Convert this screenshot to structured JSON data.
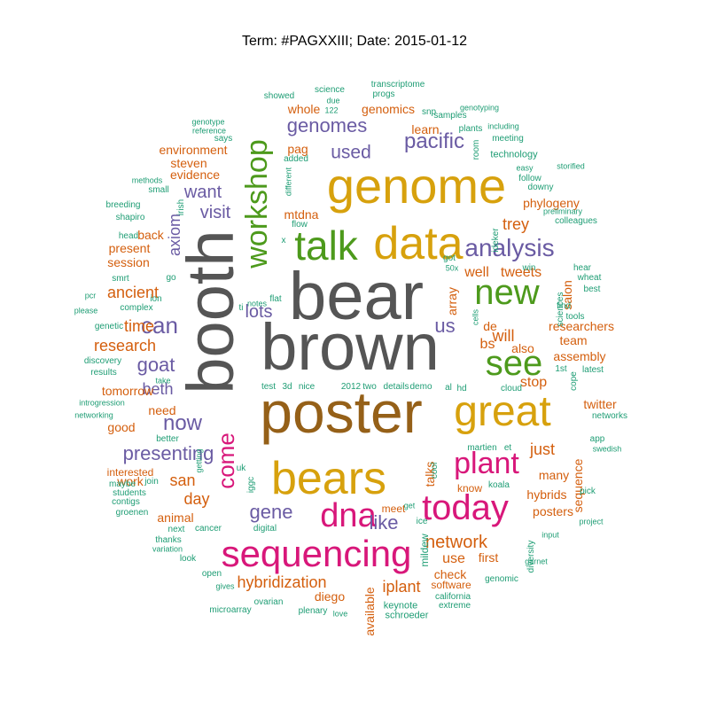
{
  "title": "Term: #PAGXXIII; Date: 2015-01-12",
  "colors": {
    "gray": "#555555",
    "brown": "#956018",
    "gold": "#d7a10d",
    "green": "#4d9a1c",
    "pink": "#d8177a",
    "purple": "#6a5ba3",
    "orange": "#d45f0e",
    "teal": "#1e9d74"
  },
  "words": [
    {
      "text": "brown",
      "color": "gray"
    },
    {
      "text": "bear",
      "color": "gray"
    },
    {
      "text": "booth",
      "color": "gray"
    },
    {
      "text": "poster",
      "color": "brown"
    },
    {
      "text": "genome",
      "color": "gold"
    },
    {
      "text": "data",
      "color": "gold"
    },
    {
      "text": "great",
      "color": "gold"
    },
    {
      "text": "bears",
      "color": "gold"
    },
    {
      "text": "talk",
      "color": "green"
    },
    {
      "text": "new",
      "color": "green"
    },
    {
      "text": "see",
      "color": "green"
    },
    {
      "text": "workshop",
      "color": "green"
    },
    {
      "text": "sequencing",
      "color": "pink"
    },
    {
      "text": "today",
      "color": "pink"
    },
    {
      "text": "dna",
      "color": "pink"
    },
    {
      "text": "plant",
      "color": "pink"
    },
    {
      "text": "come",
      "color": "pink"
    },
    {
      "text": "analysis",
      "color": "purple"
    },
    {
      "text": "pacific",
      "color": "purple"
    },
    {
      "text": "genomes",
      "color": "purple"
    },
    {
      "text": "used",
      "color": "purple"
    },
    {
      "text": "us",
      "color": "purple"
    },
    {
      "text": "can",
      "color": "purple"
    },
    {
      "text": "goat",
      "color": "purple"
    },
    {
      "text": "now",
      "color": "purple"
    },
    {
      "text": "presenting",
      "color": "purple"
    },
    {
      "text": "gene",
      "color": "purple"
    },
    {
      "text": "like",
      "color": "purple"
    },
    {
      "text": "lots",
      "color": "purple"
    },
    {
      "text": "want",
      "color": "purple"
    },
    {
      "text": "visit",
      "color": "purple"
    },
    {
      "text": "beth",
      "color": "purple"
    },
    {
      "text": "axiom",
      "color": "purple"
    },
    {
      "text": "ancient",
      "color": "orange"
    },
    {
      "text": "time",
      "color": "orange"
    },
    {
      "text": "research",
      "color": "orange"
    },
    {
      "text": "network",
      "color": "orange"
    },
    {
      "text": "hybridization",
      "color": "orange"
    },
    {
      "text": "iplant",
      "color": "orange"
    },
    {
      "text": "trey",
      "color": "orange"
    },
    {
      "text": "tweets",
      "color": "orange"
    },
    {
      "text": "well",
      "color": "orange"
    },
    {
      "text": "will",
      "color": "orange"
    },
    {
      "text": "stop",
      "color": "orange"
    },
    {
      "text": "bs",
      "color": "orange"
    },
    {
      "text": "san",
      "color": "orange"
    },
    {
      "text": "day",
      "color": "orange"
    },
    {
      "text": "just",
      "color": "orange"
    },
    {
      "text": "learn",
      "color": "orange"
    },
    {
      "text": "genomics",
      "color": "orange"
    },
    {
      "text": "whole",
      "color": "orange"
    },
    {
      "text": "evidence",
      "color": "orange"
    },
    {
      "text": "environment",
      "color": "orange"
    },
    {
      "text": "steven",
      "color": "orange"
    },
    {
      "text": "phylogeny",
      "color": "orange"
    },
    {
      "text": "salon",
      "color": "orange"
    },
    {
      "text": "assembly",
      "color": "orange"
    },
    {
      "text": "also",
      "color": "orange"
    },
    {
      "text": "use",
      "color": "orange"
    },
    {
      "text": "check",
      "color": "orange"
    },
    {
      "text": "first",
      "color": "orange"
    },
    {
      "text": "hybrids",
      "color": "orange"
    },
    {
      "text": "posters",
      "color": "orange"
    },
    {
      "text": "sequence",
      "color": "orange"
    },
    {
      "text": "many",
      "color": "orange"
    },
    {
      "text": "animal",
      "color": "orange"
    },
    {
      "text": "work",
      "color": "orange"
    },
    {
      "text": "good",
      "color": "orange"
    },
    {
      "text": "need",
      "color": "orange"
    },
    {
      "text": "tomorrow",
      "color": "orange"
    },
    {
      "text": "session",
      "color": "orange"
    },
    {
      "text": "present",
      "color": "orange"
    },
    {
      "text": "back",
      "color": "orange"
    },
    {
      "text": "pag",
      "color": "orange"
    },
    {
      "text": "mtdna",
      "color": "orange"
    },
    {
      "text": "de",
      "color": "orange"
    },
    {
      "text": "array",
      "color": "orange"
    },
    {
      "text": "interested",
      "color": "orange"
    },
    {
      "text": "diego",
      "color": "orange"
    },
    {
      "text": "software",
      "color": "orange"
    },
    {
      "text": "available",
      "color": "orange"
    },
    {
      "text": "twitter",
      "color": "orange"
    },
    {
      "text": "researchers",
      "color": "orange"
    },
    {
      "text": "team",
      "color": "orange"
    },
    {
      "text": "talks",
      "color": "orange"
    },
    {
      "text": "know",
      "color": "orange"
    },
    {
      "text": "meet",
      "color": "orange"
    },
    {
      "text": "mildew",
      "color": "teal"
    },
    {
      "text": "transcriptome",
      "color": "teal"
    },
    {
      "text": "progs",
      "color": "teal"
    },
    {
      "text": "science",
      "color": "teal"
    },
    {
      "text": "showed",
      "color": "teal"
    },
    {
      "text": "due",
      "color": "teal"
    },
    {
      "text": "122",
      "color": "teal"
    },
    {
      "text": "snp",
      "color": "teal"
    },
    {
      "text": "samples",
      "color": "teal"
    },
    {
      "text": "genotyping",
      "color": "teal"
    },
    {
      "text": "including",
      "color": "teal"
    },
    {
      "text": "plants",
      "color": "teal"
    },
    {
      "text": "meeting",
      "color": "teal"
    },
    {
      "text": "technology",
      "color": "teal"
    },
    {
      "text": "room",
      "color": "teal"
    },
    {
      "text": "easy",
      "color": "teal"
    },
    {
      "text": "follow",
      "color": "teal"
    },
    {
      "text": "downy",
      "color": "teal"
    },
    {
      "text": "genotype",
      "color": "teal"
    },
    {
      "text": "reference",
      "color": "teal"
    },
    {
      "text": "says",
      "color": "teal"
    },
    {
      "text": "added",
      "color": "teal"
    },
    {
      "text": "different",
      "color": "teal"
    },
    {
      "text": "methods",
      "color": "teal"
    },
    {
      "text": "small",
      "color": "teal"
    },
    {
      "text": "breeding",
      "color": "teal"
    },
    {
      "text": "irish",
      "color": "teal"
    },
    {
      "text": "shapiro",
      "color": "teal"
    },
    {
      "text": "head",
      "color": "teal"
    },
    {
      "text": "flow",
      "color": "teal"
    },
    {
      "text": "x",
      "color": "teal"
    },
    {
      "text": "preliminary",
      "color": "teal"
    },
    {
      "text": "colleagues",
      "color": "teal"
    },
    {
      "text": "storified",
      "color": "teal"
    },
    {
      "text": "ideker",
      "color": "teal"
    },
    {
      "text": "got",
      "color": "teal"
    },
    {
      "text": "50x",
      "color": "teal"
    },
    {
      "text": "win",
      "color": "teal"
    },
    {
      "text": "hear",
      "color": "teal"
    },
    {
      "text": "wheat",
      "color": "teal"
    },
    {
      "text": "best",
      "color": "teal"
    },
    {
      "text": "smrt",
      "color": "teal"
    },
    {
      "text": "go",
      "color": "teal"
    },
    {
      "text": "pcr",
      "color": "teal"
    },
    {
      "text": "ion",
      "color": "teal"
    },
    {
      "text": "please",
      "color": "teal"
    },
    {
      "text": "complex",
      "color": "teal"
    },
    {
      "text": "flat",
      "color": "teal"
    },
    {
      "text": "notes",
      "color": "teal"
    },
    {
      "text": "ti",
      "color": "teal"
    },
    {
      "text": "find",
      "color": "teal"
    },
    {
      "text": "tools",
      "color": "teal"
    },
    {
      "text": "sciences",
      "color": "teal"
    },
    {
      "text": "genetic",
      "color": "teal"
    },
    {
      "text": "cells",
      "color": "teal"
    },
    {
      "text": "discovery",
      "color": "teal"
    },
    {
      "text": "results",
      "color": "teal"
    },
    {
      "text": "take",
      "color": "teal"
    },
    {
      "text": "introgression",
      "color": "teal"
    },
    {
      "text": "networking",
      "color": "teal"
    },
    {
      "text": "latest",
      "color": "teal"
    },
    {
      "text": "1st",
      "color": "teal"
    },
    {
      "text": "cope",
      "color": "teal"
    },
    {
      "text": "test",
      "color": "teal"
    },
    {
      "text": "3d",
      "color": "teal"
    },
    {
      "text": "nice",
      "color": "teal"
    },
    {
      "text": "2012",
      "color": "teal"
    },
    {
      "text": "two",
      "color": "teal"
    },
    {
      "text": "details",
      "color": "teal"
    },
    {
      "text": "demo",
      "color": "teal"
    },
    {
      "text": "al",
      "color": "teal"
    },
    {
      "text": "hd",
      "color": "teal"
    },
    {
      "text": "cloud",
      "color": "teal"
    },
    {
      "text": "networks",
      "color": "teal"
    },
    {
      "text": "app",
      "color": "teal"
    },
    {
      "text": "swedish",
      "color": "teal"
    },
    {
      "text": "better",
      "color": "teal"
    },
    {
      "text": "getting",
      "color": "teal"
    },
    {
      "text": "uk",
      "color": "teal"
    },
    {
      "text": "maybe",
      "color": "teal"
    },
    {
      "text": "join",
      "color": "teal"
    },
    {
      "text": "students",
      "color": "teal"
    },
    {
      "text": "contigs",
      "color": "teal"
    },
    {
      "text": "iggc",
      "color": "teal"
    },
    {
      "text": "groenen",
      "color": "teal"
    },
    {
      "text": "cool",
      "color": "teal"
    },
    {
      "text": "martien",
      "color": "teal"
    },
    {
      "text": "et",
      "color": "teal"
    },
    {
      "text": "koala",
      "color": "teal"
    },
    {
      "text": "pick",
      "color": "teal"
    },
    {
      "text": "project",
      "color": "teal"
    },
    {
      "text": "input",
      "color": "teal"
    },
    {
      "text": "next",
      "color": "teal"
    },
    {
      "text": "cancer",
      "color": "teal"
    },
    {
      "text": "digital",
      "color": "teal"
    },
    {
      "text": "thanks",
      "color": "teal"
    },
    {
      "text": "variation",
      "color": "teal"
    },
    {
      "text": "look",
      "color": "teal"
    },
    {
      "text": "get",
      "color": "teal"
    },
    {
      "text": "diversity",
      "color": "teal"
    },
    {
      "text": "garnet",
      "color": "teal"
    },
    {
      "text": "genomic",
      "color": "teal"
    },
    {
      "text": "open",
      "color": "teal"
    },
    {
      "text": "gives",
      "color": "teal"
    },
    {
      "text": "ovarian",
      "color": "teal"
    },
    {
      "text": "microarray",
      "color": "teal"
    },
    {
      "text": "plenary",
      "color": "teal"
    },
    {
      "text": "love",
      "color": "teal"
    },
    {
      "text": "keynote",
      "color": "teal"
    },
    {
      "text": "schroeder",
      "color": "teal"
    },
    {
      "text": "california",
      "color": "teal"
    },
    {
      "text": "extreme",
      "color": "teal"
    },
    {
      "text": "ice",
      "color": "teal"
    }
  ]
}
